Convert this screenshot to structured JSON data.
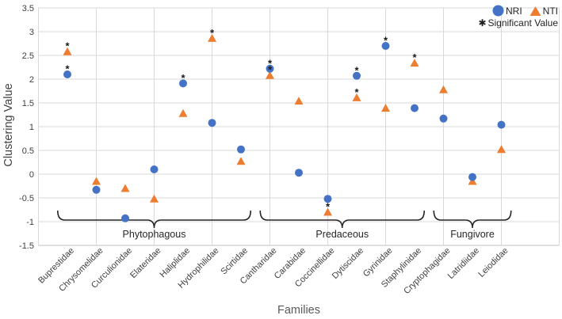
{
  "chart_data": {
    "type": "scatter",
    "title": "",
    "xlabel": "Families",
    "ylabel": "Clustering Value",
    "ylim": [
      -1.5,
      3.5
    ],
    "ytick_step": 0.5,
    "yticks": [
      "3.5",
      "3",
      "2.5",
      "2",
      "1.5",
      "1",
      "0.5",
      "0",
      "-0.5",
      "-1",
      "-1.5"
    ],
    "grid": true,
    "legend_position": "top-right",
    "categories": [
      "Buprestidae",
      "Chrysomelidae",
      "Curculionidae",
      "Elateridae",
      "Haliplidae",
      "Hydrophilidae",
      "Scirtidae",
      "Cantharidae",
      "Carabidae",
      "Coccinellidae",
      "Dytiscidae",
      "Gyrinidae",
      "Staphylinidae",
      "Cryptophagidae",
      "Latridiidae",
      "Leiodidae"
    ],
    "series": [
      {
        "name": "NRI",
        "marker": "circle",
        "color": "#4472C4",
        "values": [
          2.1,
          -0.33,
          -0.93,
          0.1,
          1.91,
          1.08,
          0.52,
          2.22,
          0.03,
          -0.52,
          2.07,
          2.7,
          1.39,
          1.17,
          -0.06,
          1.04
        ],
        "significant": [
          true,
          false,
          false,
          false,
          true,
          false,
          false,
          true,
          false,
          false,
          true,
          true,
          false,
          false,
          false,
          false
        ]
      },
      {
        "name": "NTI",
        "marker": "triangle",
        "color": "#ED7D31",
        "values": [
          2.58,
          -0.15,
          -0.3,
          -0.52,
          1.28,
          2.86,
          0.27,
          2.08,
          1.54,
          -0.8,
          1.61,
          1.39,
          2.34,
          1.78,
          -0.15,
          0.52
        ],
        "significant": [
          true,
          false,
          false,
          false,
          false,
          true,
          false,
          true,
          false,
          true,
          true,
          false,
          true,
          false,
          false,
          false
        ]
      }
    ],
    "groups": [
      {
        "label": "Phytophagous",
        "start": 1,
        "end": 7
      },
      {
        "label": "Predaceous",
        "start": 8,
        "end": 13
      },
      {
        "label": "Fungivore",
        "start": 14,
        "end": 16
      }
    ],
    "legend": {
      "sig_symbol": "✱",
      "sig_label": "Significant Value",
      "point_symbol": "*"
    },
    "colors": {
      "nri": "#4472C4",
      "nti": "#ED7D31",
      "gridline": "#D9D9D9",
      "axis_line": "#BFBFBF",
      "tick_text": "#404040",
      "group_text": "#262626",
      "significant": "#1a1a1a"
    }
  }
}
